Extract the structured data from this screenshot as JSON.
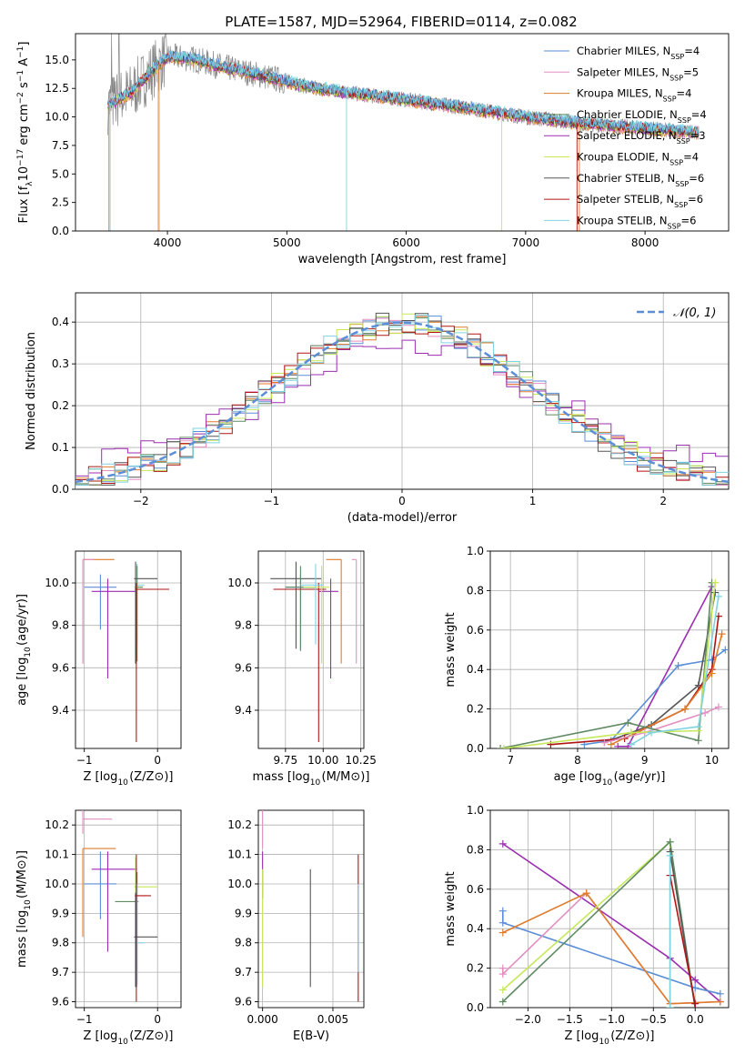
{
  "figure_title": "PLATE=1587, MJD=52964, FIBERID=0114, z=0.082",
  "colors": {
    "blue": "#5b8ed6",
    "pink": "#e38fc2",
    "orange": "#e07b2a",
    "green": "#5f8a62",
    "purple": "#9b2fb0",
    "yellowgreen": "#c6e85a",
    "gray": "#555555",
    "red": "#b01515",
    "cyan": "#7fd3e0",
    "dataGray": "#888888"
  },
  "chart_data": [
    {
      "id": "spectrum",
      "type": "line",
      "xlabel": "wavelength [Angstrom, rest frame]",
      "ylabel": "Flux [f_λ 10^−17 erg cm^−2 s^−1 A^−1]",
      "xlim": [
        3230,
        8700
      ],
      "ylim": [
        0,
        17.3
      ],
      "xticks": [
        4000,
        5000,
        6000,
        7000,
        8000
      ],
      "yticks": [
        0.0,
        2.5,
        5.0,
        7.5,
        10.0,
        12.5,
        15.0
      ],
      "grid": false,
      "legend_position": "top-right",
      "series": [
        {
          "name": "Chabrier MILES, N_SSP=4",
          "color": "blue"
        },
        {
          "name": "Salpeter MILES, N_SSP=5",
          "color": "pink"
        },
        {
          "name": "Kroupa MILES, N_SSP=4",
          "color": "orange"
        },
        {
          "name": "Chabrier ELODIE, N_SSP=4",
          "color": "green"
        },
        {
          "name": "Salpeter ELODIE, N_SSP=3",
          "color": "purple"
        },
        {
          "name": "Kroupa ELODIE, N_SSP=4",
          "color": "yellowgreen"
        },
        {
          "name": "Chabrier STELIB, N_SSP=6",
          "color": "gray"
        },
        {
          "name": "Salpeter STELIB, N_SSP=6",
          "color": "red"
        },
        {
          "name": "Kroupa STELIB, N_SSP=6",
          "color": "cyan"
        }
      ],
      "continuum": {
        "x": [
          3500,
          3700,
          3850,
          4000,
          4200,
          4500,
          4800,
          5200,
          5600,
          6000,
          6500,
          7000,
          7500,
          8000,
          8450
        ],
        "y": [
          11.0,
          12.2,
          13.8,
          15.3,
          15.1,
          14.3,
          13.6,
          12.6,
          12.0,
          11.5,
          10.8,
          10.0,
          9.4,
          9.0,
          8.6
        ]
      }
    },
    {
      "id": "residuals",
      "type": "line",
      "xlabel": "(data-model)/error",
      "ylabel": "Normed distribution",
      "xlim": [
        -2.5,
        2.5
      ],
      "ylim": [
        0,
        0.47
      ],
      "xticks": [
        -2,
        -1,
        0,
        1,
        2
      ],
      "yticks": [
        0.0,
        0.1,
        0.2,
        0.3,
        0.4
      ],
      "grid": true,
      "legend_position": "top-right",
      "legend": "𝒩(0, 1)",
      "gaussian": {
        "mean": 0,
        "sigma": 1
      }
    },
    {
      "id": "age-vs-Z",
      "type": "scatter",
      "xlabel": "Z [log10(Z/Z⊙)]",
      "ylabel": "age  [log10(age/yr)]",
      "xlim": [
        -1.12,
        0.32
      ],
      "ylim": [
        9.22,
        10.15
      ],
      "xticks": [
        -1,
        0
      ],
      "yticks": [
        9.4,
        9.6,
        9.8,
        10.0
      ],
      "grid": true,
      "errorbars": [
        {
          "color": "orange",
          "x": -1.02,
          "y": 10.11,
          "xerr": [
            0,
            0.43
          ],
          "yerr": [
            0.49,
            0
          ]
        },
        {
          "color": "pink",
          "x": -1.02,
          "y": 10.11,
          "xerr": [
            0,
            0.15
          ],
          "yerr": [
            0.49,
            0
          ]
        },
        {
          "color": "blue",
          "x": -0.78,
          "y": 9.98,
          "xerr": [
            0.22,
            0.22
          ],
          "yerr": [
            0.2,
            0.06
          ]
        },
        {
          "color": "purple",
          "x": -0.68,
          "y": 9.96,
          "xerr": [
            0.22,
            0.4
          ],
          "yerr": [
            0.41,
            0.06
          ]
        },
        {
          "color": "yellowgreen",
          "x": -0.3,
          "y": 9.98,
          "xerr": [
            0.02,
            0.1
          ],
          "yerr": [
            0.33,
            0.1
          ]
        },
        {
          "color": "cyan",
          "x": -0.28,
          "y": 9.99,
          "xerr": [
            0.02,
            0.1
          ],
          "yerr": [
            0.28,
            0.1
          ]
        },
        {
          "color": "green",
          "x": -0.28,
          "y": 9.98,
          "xerr": [
            0.02,
            0.08
          ],
          "yerr": [
            0.35,
            0.1
          ]
        },
        {
          "color": "gray",
          "x": -0.3,
          "y": 10.02,
          "xerr": [
            0.02,
            0.3
          ],
          "yerr": [
            0.4,
            0.08
          ]
        },
        {
          "color": "red",
          "x": -0.29,
          "y": 9.97,
          "xerr": [
            0.02,
            0.45
          ],
          "yerr": [
            0.72,
            0.03
          ]
        }
      ]
    },
    {
      "id": "age-vs-mass",
      "type": "scatter",
      "xlabel": "mass [log10(M/M⊙)]",
      "ylabel": "",
      "xlim": [
        9.57,
        10.27
      ],
      "ylim": [
        9.22,
        10.15
      ],
      "xticks": [
        9.75,
        10.0,
        10.25
      ],
      "yticks": [
        9.4,
        9.6,
        9.8,
        10.0
      ],
      "grid": true,
      "errorbars": [
        {
          "color": "gray",
          "x": 9.82,
          "y": 10.02,
          "xerr": [
            0.17,
            0.17
          ],
          "yerr": [
            0.33,
            0.08
          ]
        },
        {
          "color": "blue",
          "x": 9.85,
          "y": 9.98,
          "xerr": [
            0.1,
            0.1
          ],
          "yerr": [
            0.3,
            0.06
          ]
        },
        {
          "color": "green",
          "x": 9.85,
          "y": 9.98,
          "xerr": [
            0.1,
            0.1
          ],
          "yerr": [
            0.3,
            0.1
          ]
        },
        {
          "color": "red",
          "x": 9.97,
          "y": 9.97,
          "xerr": [
            0.3,
            0.05
          ],
          "yerr": [
            0.72,
            0.03
          ]
        },
        {
          "color": "purple",
          "x": 10.05,
          "y": 9.96,
          "xerr": [
            0.08,
            0.05
          ],
          "yerr": [
            0.41,
            0.06
          ]
        },
        {
          "color": "yellowgreen",
          "x": 9.99,
          "y": 9.98,
          "xerr": [
            0.12,
            0.05
          ],
          "yerr": [
            0.36,
            0.1
          ]
        },
        {
          "color": "cyan",
          "x": 9.95,
          "y": 9.99,
          "xerr": [
            0.1,
            0.05
          ],
          "yerr": [
            0.28,
            0.1
          ]
        },
        {
          "color": "orange",
          "x": 10.12,
          "y": 10.11,
          "xerr": [
            0.1,
            0
          ],
          "yerr": [
            0.49,
            0
          ]
        },
        {
          "color": "pink",
          "x": 10.22,
          "y": 10.11,
          "xerr": [
            0.03,
            0
          ],
          "yerr": [
            0.49,
            0
          ]
        }
      ]
    },
    {
      "id": "massweight-vs-age",
      "type": "line",
      "xlabel": "age  [log10(age/yr)]",
      "ylabel": "mass weight",
      "xlim": [
        6.7,
        10.25
      ],
      "ylim": [
        0,
        1.0
      ],
      "xticks": [
        7,
        8,
        9,
        10
      ],
      "yticks": [
        0.0,
        0.2,
        0.4,
        0.6,
        0.8,
        1.0
      ],
      "grid": true,
      "series": [
        {
          "color": "purple",
          "x": [
            8.6,
            8.75,
            10.0
          ],
          "y": [
            0.01,
            0.01,
            0.82
          ]
        },
        {
          "color": "blue",
          "x": [
            8.1,
            8.5,
            9.5,
            10.0,
            10.2
          ],
          "y": [
            0.02,
            0.04,
            0.42,
            0.45,
            0.5
          ]
        },
        {
          "color": "gray",
          "x": [
            8.4,
            8.8,
            9.1,
            9.8,
            10.05
          ],
          "y": [
            0.03,
            0.08,
            0.12,
            0.32,
            0.79
          ]
        },
        {
          "color": "red",
          "x": [
            7.6,
            8.7,
            9.6,
            10.0,
            10.1
          ],
          "y": [
            0.02,
            0.05,
            0.2,
            0.4,
            0.67
          ]
        },
        {
          "color": "orange",
          "x": [
            8.5,
            9.6,
            10.0,
            10.15
          ],
          "y": [
            0.02,
            0.2,
            0.38,
            0.58
          ]
        },
        {
          "color": "pink",
          "x": [
            8.4,
            9.0,
            9.9,
            10.1
          ],
          "y": [
            0.03,
            0.08,
            0.18,
            0.21
          ]
        },
        {
          "color": "green",
          "x": [
            6.85,
            8.75,
            9.8,
            10.0
          ],
          "y": [
            0.0,
            0.13,
            0.04,
            0.84
          ]
        },
        {
          "color": "yellowgreen",
          "x": [
            6.9,
            8.8,
            9.8,
            10.05
          ],
          "y": [
            0.0,
            0.08,
            0.09,
            0.84
          ]
        },
        {
          "color": "cyan",
          "x": [
            8.8,
            9.1,
            9.8,
            10.1
          ],
          "y": [
            0.02,
            0.08,
            0.11,
            0.77
          ]
        }
      ]
    },
    {
      "id": "mass-vs-Z",
      "type": "scatter",
      "xlabel": "Z [log10(Z/Z⊙)]",
      "ylabel": "mass [log10(M/M⊙)]",
      "xlim": [
        -1.12,
        0.32
      ],
      "ylim": [
        9.58,
        10.25
      ],
      "xticks": [
        -1,
        0
      ],
      "yticks": [
        9.6,
        9.7,
        9.8,
        9.9,
        10.0,
        10.1,
        10.2
      ],
      "grid": true,
      "errorbars": [
        {
          "color": "pink",
          "x": -1.02,
          "y": 10.22,
          "xerr": [
            0,
            0.4
          ],
          "yerr": [
            0.05,
            0.03
          ]
        },
        {
          "color": "orange",
          "x": -1.02,
          "y": 10.12,
          "xerr": [
            0,
            0.45
          ],
          "yerr": [
            0.3,
            0
          ]
        },
        {
          "color": "blue",
          "x": -0.78,
          "y": 10.0,
          "xerr": [
            0.22,
            0.22
          ],
          "yerr": [
            0.12,
            0.11
          ]
        },
        {
          "color": "purple",
          "x": -0.68,
          "y": 10.05,
          "xerr": [
            0.22,
            0.4
          ],
          "yerr": [
            0.28,
            0.06
          ]
        },
        {
          "color": "yellowgreen",
          "x": -0.3,
          "y": 9.99,
          "xerr": [
            0.02,
            0.3
          ],
          "yerr": [
            0.33,
            0.1
          ]
        },
        {
          "color": "green",
          "x": -0.28,
          "y": 9.94,
          "xerr": [
            0.3,
            0.02
          ],
          "yerr": [
            0.28,
            0.1
          ]
        },
        {
          "color": "cyan",
          "x": -0.28,
          "y": 9.8,
          "xerr": [
            0.02,
            0.1
          ],
          "yerr": [
            0.15,
            0.2
          ]
        },
        {
          "color": "gray",
          "x": -0.3,
          "y": 9.82,
          "xerr": [
            0.02,
            0.3
          ],
          "yerr": [
            0.17,
            0.15
          ]
        },
        {
          "color": "red",
          "x": -0.29,
          "y": 9.96,
          "xerr": [
            0.02,
            0.2
          ],
          "yerr": [
            0.36,
            0.14
          ]
        }
      ]
    },
    {
      "id": "mass-vs-EBV",
      "type": "scatter",
      "xlabel": "E(B-V)",
      "ylabel": "",
      "xlim": [
        -0.0003,
        0.0072
      ],
      "ylim": [
        9.58,
        10.25
      ],
      "xticks": [
        0.0,
        0.005
      ],
      "tick_labels": [
        "0.000",
        "0.005"
      ],
      "yticks": [
        9.6,
        9.7,
        9.8,
        9.9,
        10.0,
        10.1,
        10.2
      ],
      "grid": true,
      "errorbars": [
        {
          "color": "pink",
          "x": 0.0,
          "y": 10.22,
          "xerr": [
            0,
            0
          ],
          "yerr": [
            0.1,
            0.03
          ]
        },
        {
          "color": "purple",
          "x": 0.0,
          "y": 10.05,
          "xerr": [
            0,
            0
          ],
          "yerr": [
            0.1,
            0.06
          ]
        },
        {
          "color": "yellowgreen",
          "x": 0.0,
          "y": 9.9,
          "xerr": [
            0,
            0
          ],
          "yerr": [
            0.25,
            0.15
          ]
        },
        {
          "color": "gray",
          "x": 0.0034,
          "y": 9.85,
          "xerr": [
            0,
            0
          ],
          "yerr": [
            0.2,
            0.2
          ]
        },
        {
          "color": "red",
          "x": 0.0068,
          "y": 9.85,
          "xerr": [
            0,
            0
          ],
          "yerr": [
            0.25,
            0.25
          ]
        },
        {
          "color": "cyan",
          "x": 0.0068,
          "y": 9.85,
          "xerr": [
            0,
            0
          ],
          "yerr": [
            0.15,
            0.15
          ]
        }
      ]
    },
    {
      "id": "massweight-vs-Z",
      "type": "line",
      "xlabel": "Z [log10(Z/Z⊙)]",
      "ylabel": "mass weight",
      "xlim": [
        -2.45,
        0.4
      ],
      "ylim": [
        0,
        1.0
      ],
      "xticks": [
        -2.0,
        -1.5,
        -1.0,
        -0.5,
        0.0
      ],
      "yticks": [
        0.0,
        0.2,
        0.4,
        0.6,
        0.8,
        1.0
      ],
      "grid": true,
      "series": [
        {
          "color": "purple",
          "x": [
            -2.3,
            -0.3,
            0.0,
            0.3
          ],
          "y": [
            0.83,
            0.25,
            0.14,
            0.03
          ]
        },
        {
          "color": "blue",
          "x": [
            -2.3,
            -2.3,
            0.0,
            0.3
          ],
          "y": [
            0.49,
            0.43,
            0.1,
            0.07
          ]
        },
        {
          "color": "pink",
          "x": [
            -2.3,
            -2.3,
            -1.3,
            -0.3,
            0.3
          ],
          "y": [
            0.2,
            0.17,
            0.58,
            0.02,
            0.03
          ]
        },
        {
          "color": "orange",
          "x": [
            -2.3,
            -1.3,
            -0.3,
            0.3
          ],
          "y": [
            0.38,
            0.58,
            0.02,
            0.03
          ]
        },
        {
          "color": "yellowgreen",
          "x": [
            -2.3,
            -0.3,
            -0.3
          ],
          "y": [
            0.09,
            0.84,
            0.0
          ]
        },
        {
          "color": "green",
          "x": [
            -2.3,
            -0.3,
            0.0
          ],
          "y": [
            0.03,
            0.84,
            0.0
          ]
        },
        {
          "color": "gray",
          "x": [
            -0.3,
            0.0
          ],
          "y": [
            0.79,
            0.0
          ]
        },
        {
          "color": "red",
          "x": [
            -0.3,
            0.0
          ],
          "y": [
            0.67,
            0.02
          ]
        },
        {
          "color": "cyan",
          "x": [
            -0.3,
            -0.3
          ],
          "y": [
            0.77,
            0.0
          ]
        }
      ]
    }
  ]
}
